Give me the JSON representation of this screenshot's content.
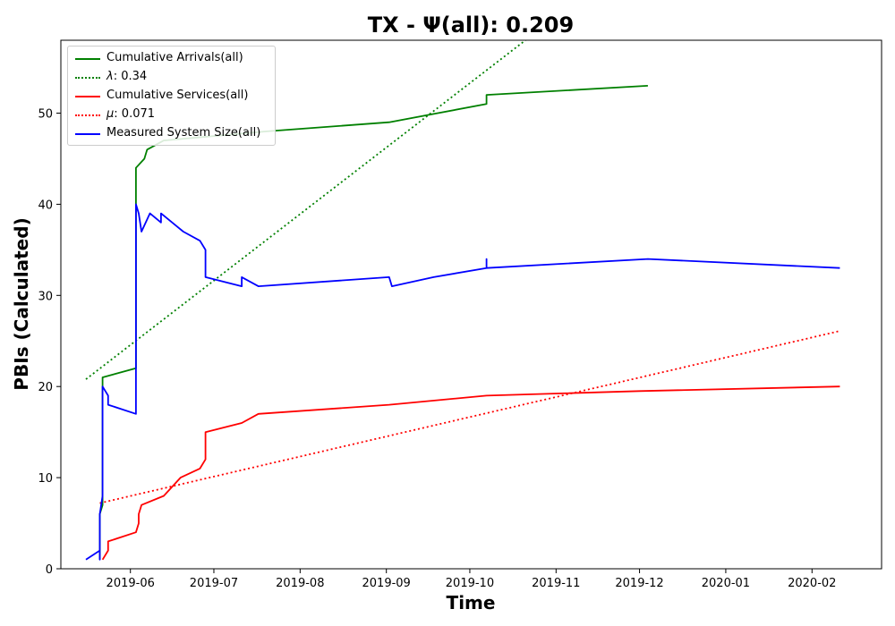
{
  "chart_data": {
    "type": "line",
    "title": "TX -  Ψ(all): 0.209",
    "xlabel": "Time",
    "ylabel": "PBIs (Calculated)",
    "ylim": [
      0,
      58
    ],
    "xlim": [
      "2019-05-07",
      "2020-02-26"
    ],
    "x_ticks": [
      "2019-06",
      "2019-07",
      "2019-08",
      "2019-09",
      "2019-10",
      "2019-11",
      "2019-12",
      "2020-01",
      "2020-02"
    ],
    "x_tick_dates": [
      "2019-06-01",
      "2019-07-01",
      "2019-08-01",
      "2019-09-01",
      "2019-10-01",
      "2019-11-01",
      "2019-12-01",
      "2020-01-01",
      "2020-02-01"
    ],
    "y_ticks": [
      0,
      10,
      20,
      30,
      40,
      50
    ],
    "grid": false,
    "legend_position": "upper-left",
    "series": [
      {
        "name": "Cumulative Arrivals(all)",
        "color": "#008000",
        "style": "solid",
        "points": [
          [
            "2019-05-21",
            1
          ],
          [
            "2019-05-21",
            6
          ],
          [
            "2019-05-22",
            7
          ],
          [
            "2019-05-22",
            21
          ],
          [
            "2019-06-03",
            22
          ],
          [
            "2019-06-03",
            44
          ],
          [
            "2019-06-06",
            45
          ],
          [
            "2019-06-07",
            46
          ],
          [
            "2019-06-13",
            47
          ],
          [
            "2019-07-20",
            48
          ],
          [
            "2019-09-02",
            49
          ],
          [
            "2019-10-07",
            51
          ],
          [
            "2019-10-07",
            52
          ],
          [
            "2019-12-04",
            53
          ]
        ]
      },
      {
        "name": "λ: 0.34",
        "legend_symbol": "λ",
        "legend_text": ": 0.34",
        "color": "#008000",
        "style": "dotted",
        "points": [
          [
            "2019-05-16",
            20.8
          ],
          [
            "2019-10-21",
            58
          ]
        ]
      },
      {
        "name": "Cumulative Services(all)",
        "color": "#ff0000",
        "style": "solid",
        "points": [
          [
            "2019-05-22",
            1
          ],
          [
            "2019-05-24",
            2
          ],
          [
            "2019-05-24",
            3
          ],
          [
            "2019-06-03",
            4
          ],
          [
            "2019-06-04",
            5
          ],
          [
            "2019-06-04",
            6
          ],
          [
            "2019-06-05",
            7
          ],
          [
            "2019-06-13",
            8
          ],
          [
            "2019-06-19",
            10
          ],
          [
            "2019-06-26",
            11
          ],
          [
            "2019-06-28",
            12
          ],
          [
            "2019-06-28",
            15
          ],
          [
            "2019-07-11",
            16
          ],
          [
            "2019-07-17",
            17
          ],
          [
            "2019-09-02",
            18
          ],
          [
            "2019-10-07",
            19
          ],
          [
            "2019-12-01",
            19.5
          ],
          [
            "2020-02-11",
            20
          ]
        ]
      },
      {
        "name": "μ: 0.071",
        "legend_symbol": "μ",
        "legend_text": ": 0.071",
        "color": "#ff0000",
        "style": "dotted",
        "points": [
          [
            "2019-05-21",
            7.2
          ],
          [
            "2020-02-11",
            26.1
          ]
        ]
      },
      {
        "name": "Measured System Size(all)",
        "color": "#0000ff",
        "style": "solid",
        "points": [
          [
            "2019-05-16",
            1
          ],
          [
            "2019-05-21",
            2
          ],
          [
            "2019-05-21",
            1
          ],
          [
            "2019-05-21",
            6
          ],
          [
            "2019-05-22",
            8
          ],
          [
            "2019-05-22",
            20
          ],
          [
            "2019-05-24",
            19
          ],
          [
            "2019-05-24",
            18
          ],
          [
            "2019-06-03",
            17
          ],
          [
            "2019-06-03",
            18
          ],
          [
            "2019-06-03",
            40
          ],
          [
            "2019-06-04",
            39
          ],
          [
            "2019-06-05",
            37
          ],
          [
            "2019-06-08",
            39
          ],
          [
            "2019-06-12",
            38
          ],
          [
            "2019-06-12",
            39
          ],
          [
            "2019-06-20",
            37
          ],
          [
            "2019-06-26",
            36
          ],
          [
            "2019-06-28",
            35
          ],
          [
            "2019-06-28",
            32
          ],
          [
            "2019-07-11",
            31
          ],
          [
            "2019-07-11",
            32
          ],
          [
            "2019-07-17",
            31
          ],
          [
            "2019-09-02",
            32
          ],
          [
            "2019-09-03",
            31
          ],
          [
            "2019-09-18",
            32
          ],
          [
            "2019-10-07",
            33
          ],
          [
            "2019-10-07",
            34
          ],
          [
            "2019-10-07",
            33
          ],
          [
            "2019-12-04",
            34
          ],
          [
            "2020-02-11",
            33
          ]
        ]
      }
    ]
  }
}
